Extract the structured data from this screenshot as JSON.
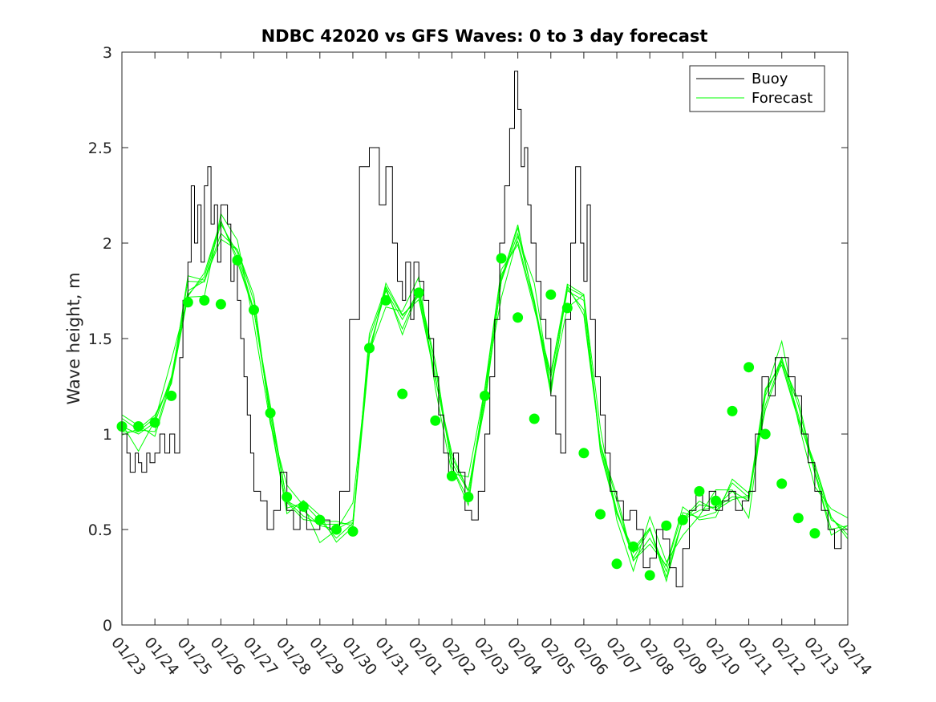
{
  "chart_data": {
    "type": "line",
    "title": "NDBC 42020 vs GFS Waves: 0 to 3 day forecast",
    "xlabel": "",
    "ylabel": "Wave height, m",
    "ylim": [
      0,
      3
    ],
    "xlim": [
      0,
      22
    ],
    "yticks": [
      0,
      0.5,
      1,
      1.5,
      2,
      2.5,
      3
    ],
    "ytick_labels": [
      "0",
      "0.5",
      "1",
      "1.5",
      "2",
      "2.5",
      "3"
    ],
    "xtick_labels": [
      "01/23",
      "01/24",
      "01/25",
      "01/26",
      "01/27",
      "01/28",
      "01/29",
      "01/30",
      "01/31",
      "02/01",
      "02/02",
      "02/03",
      "02/04",
      "02/05",
      "02/06",
      "02/07",
      "02/08",
      "02/09",
      "02/10",
      "02/11",
      "02/12",
      "02/13",
      "02/14"
    ],
    "legend": {
      "position": "top-right",
      "entries": [
        "Buoy",
        "Forecast"
      ]
    },
    "colors": {
      "buoy": "#000000",
      "forecast": "#00ff00",
      "axis": "#262626"
    },
    "series": [
      {
        "name": "Buoy",
        "x": [
          0,
          0.15,
          0.25,
          0.4,
          0.5,
          0.6,
          0.75,
          0.85,
          1.0,
          1.15,
          1.3,
          1.45,
          1.6,
          1.75,
          1.85,
          2.0,
          2.1,
          2.2,
          2.3,
          2.4,
          2.5,
          2.6,
          2.7,
          2.8,
          2.9,
          3.0,
          3.1,
          3.2,
          3.3,
          3.4,
          3.5,
          3.6,
          3.7,
          3.8,
          3.9,
          4.0,
          4.2,
          4.4,
          4.6,
          4.8,
          5.0,
          5.2,
          5.4,
          5.6,
          5.8,
          6.0,
          6.3,
          6.6,
          6.9,
          7.2,
          7.5,
          7.8,
          8.0,
          8.2,
          8.35,
          8.5,
          8.6,
          8.75,
          8.85,
          9.0,
          9.15,
          9.3,
          9.45,
          9.6,
          9.75,
          9.9,
          10.05,
          10.2,
          10.4,
          10.6,
          10.8,
          11.0,
          11.15,
          11.3,
          11.45,
          11.6,
          11.75,
          11.9,
          12.0,
          12.1,
          12.2,
          12.3,
          12.4,
          12.55,
          12.7,
          12.85,
          13.0,
          13.15,
          13.3,
          13.45,
          13.6,
          13.75,
          13.9,
          14.0,
          14.1,
          14.2,
          14.35,
          14.5,
          14.65,
          14.8,
          15.0,
          15.2,
          15.4,
          15.6,
          15.8,
          16.0,
          16.2,
          16.4,
          16.6,
          16.8,
          17.0,
          17.2,
          17.4,
          17.6,
          17.8,
          18.0,
          18.2,
          18.4,
          18.6,
          18.8,
          19.0,
          19.2,
          19.4,
          19.6,
          19.8,
          20.0,
          20.2,
          20.4,
          20.6,
          20.8,
          21.0,
          21.2,
          21.4,
          21.6,
          21.8,
          22.0
        ],
        "y": [
          1.0,
          0.9,
          0.8,
          0.9,
          0.85,
          0.8,
          0.9,
          0.85,
          0.9,
          1.0,
          0.9,
          1.0,
          0.9,
          1.4,
          1.7,
          1.9,
          2.3,
          2.0,
          2.2,
          1.9,
          2.3,
          2.4,
          2.1,
          2.2,
          1.9,
          2.2,
          2.2,
          2.1,
          1.8,
          1.9,
          1.7,
          1.5,
          1.3,
          1.1,
          0.9,
          0.7,
          0.65,
          0.5,
          0.6,
          0.8,
          0.6,
          0.5,
          0.6,
          0.5,
          0.5,
          0.55,
          0.5,
          0.7,
          1.6,
          2.4,
          2.5,
          2.2,
          2.4,
          2.0,
          1.8,
          1.7,
          1.9,
          1.6,
          1.9,
          1.8,
          1.7,
          1.5,
          1.3,
          1.1,
          0.9,
          0.8,
          0.9,
          0.8,
          0.6,
          0.55,
          0.7,
          1.0,
          1.3,
          1.6,
          2.0,
          2.3,
          2.6,
          2.9,
          2.7,
          2.4,
          2.5,
          2.2,
          2.0,
          1.8,
          1.6,
          1.5,
          1.2,
          1.0,
          0.9,
          1.6,
          2.0,
          2.4,
          2.0,
          1.8,
          2.2,
          1.6,
          1.3,
          1.1,
          0.9,
          0.7,
          0.65,
          0.55,
          0.6,
          0.5,
          0.3,
          0.35,
          0.5,
          0.45,
          0.3,
          0.2,
          0.4,
          0.6,
          0.7,
          0.6,
          0.7,
          0.6,
          0.65,
          0.7,
          0.6,
          0.65,
          0.7,
          1.0,
          1.3,
          1.2,
          1.4,
          1.4,
          1.3,
          1.2,
          1.0,
          0.85,
          0.7,
          0.6,
          0.5,
          0.4,
          0.5,
          0.6
        ]
      },
      {
        "name": "Forecast",
        "x": [
          0,
          0.5,
          1.0,
          1.5,
          2.0,
          2.5,
          3.0,
          3.5,
          4.0,
          4.5,
          5.0,
          5.5,
          6.0,
          6.5,
          7.0,
          7.5,
          8.0,
          8.5,
          9.0,
          9.5,
          10.0,
          10.5,
          11.0,
          11.5,
          12.0,
          12.5,
          13.0,
          13.5,
          14.0,
          14.5,
          15.0,
          15.5,
          16.0,
          16.5,
          17.0,
          17.5,
          18.0,
          18.5,
          19.0,
          19.5,
          20.0,
          20.5,
          21.0,
          21.5,
          22.0
        ],
        "y": [
          1.04,
          1.0,
          1.06,
          1.3,
          1.75,
          1.8,
          2.1,
          1.95,
          1.65,
          1.1,
          0.65,
          0.6,
          0.52,
          0.5,
          0.55,
          1.45,
          1.75,
          1.6,
          1.75,
          1.3,
          0.85,
          0.7,
          1.2,
          1.8,
          2.05,
          1.7,
          1.25,
          1.75,
          1.7,
          0.95,
          0.6,
          0.35,
          0.5,
          0.28,
          0.55,
          0.6,
          0.62,
          0.7,
          0.65,
          1.2,
          1.4,
          1.1,
          0.8,
          0.55,
          0.5
        ]
      },
      {
        "name": "Forecast (0-day points)",
        "x": [
          0,
          0.5,
          1.0,
          1.5,
          2.0,
          2.5,
          3.0,
          3.5,
          4.0,
          4.5,
          5.0,
          5.5,
          6.0,
          6.5,
          7.0,
          7.5,
          8.0,
          8.5,
          9.0,
          9.5,
          10.0,
          10.5,
          11.0,
          11.5,
          12.0,
          12.5,
          13.0,
          13.5,
          14.0,
          14.5,
          15.0,
          15.5,
          16.0,
          16.5,
          17.0,
          17.5,
          18.0,
          18.5,
          19.0,
          19.5,
          20.0,
          20.5,
          21.0,
          21.5,
          22.0
        ],
        "y": [
          1.04,
          1.04,
          1.06,
          1.2,
          1.69,
          1.7,
          1.68,
          1.91,
          1.65,
          1.11,
          0.67,
          0.62,
          0.55,
          0.5,
          0.49,
          1.45,
          1.7,
          1.21,
          1.74,
          1.07,
          0.78,
          0.67,
          1.2,
          1.92,
          1.61,
          1.08,
          1.73,
          1.66,
          0.9,
          0.58,
          0.32,
          0.41,
          0.26,
          0.52,
          0.55,
          0.7,
          0.65,
          1.12,
          1.35,
          1.0,
          0.74,
          0.56,
          0.48,
          null,
          null
        ]
      }
    ]
  }
}
